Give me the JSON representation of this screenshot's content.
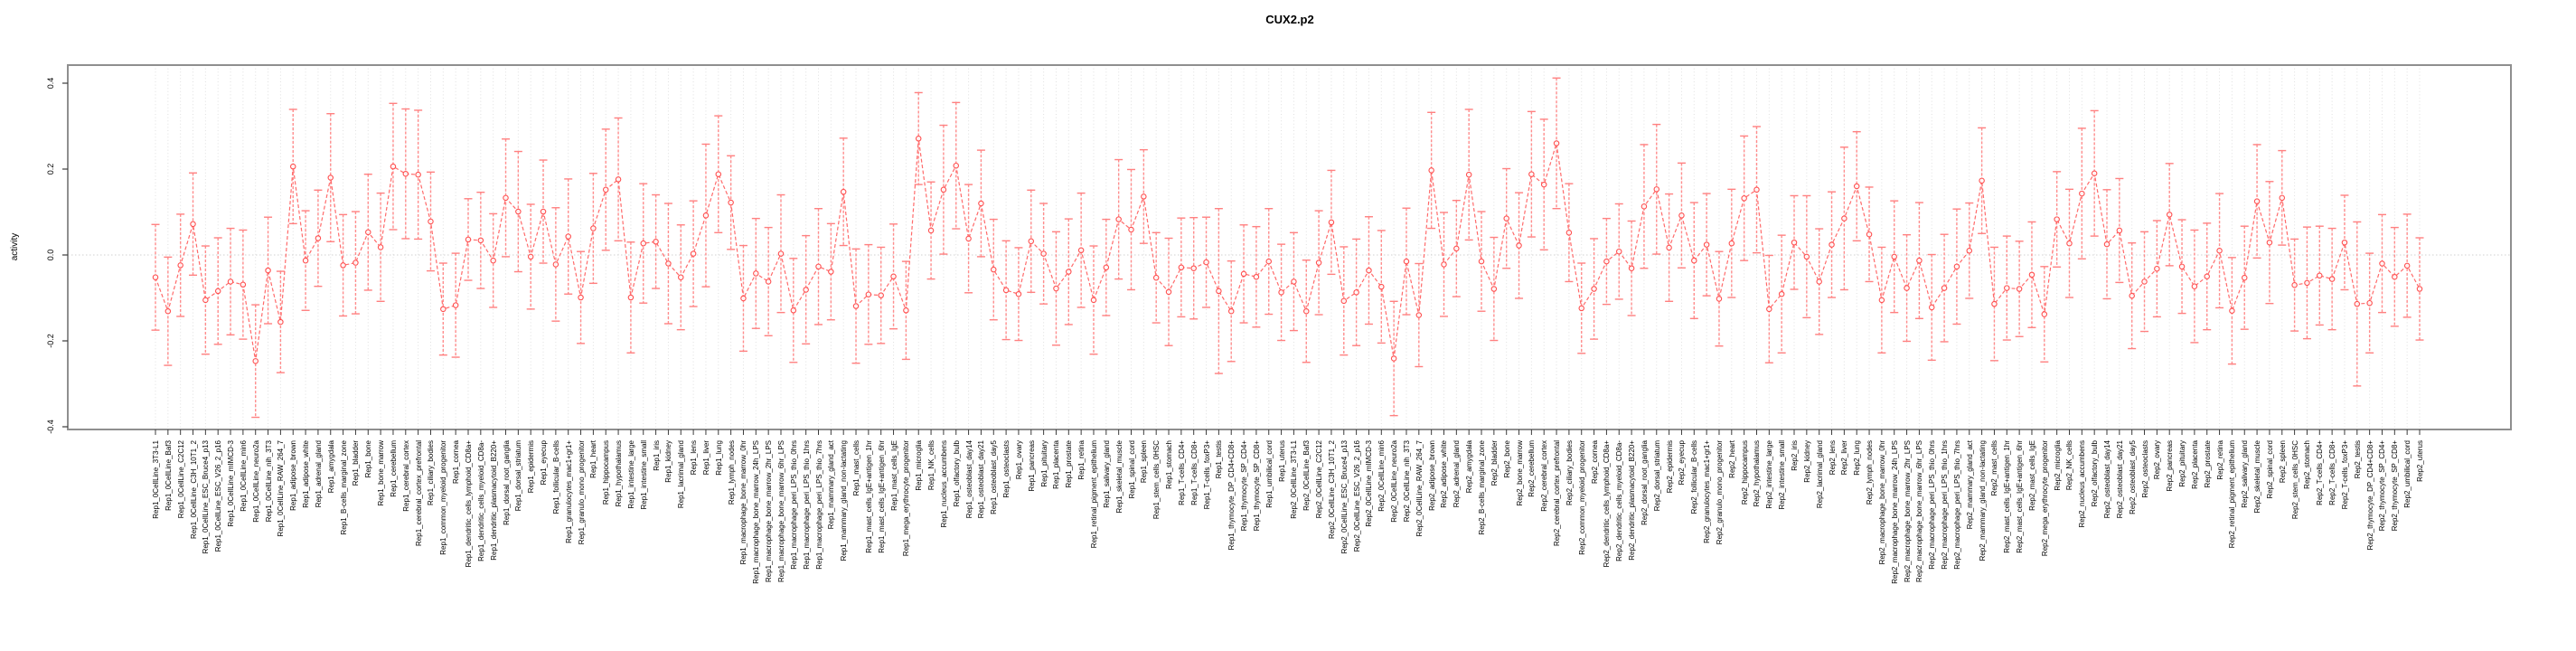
{
  "title": "CUX2.p2",
  "chart_data": {
    "type": "line",
    "title": "CUX2.p2",
    "xlabel": "",
    "ylabel": "activity",
    "ylim": [
      -0.406,
      0.442
    ],
    "yticks": [
      -0.4,
      -0.2,
      0.0,
      0.2,
      0.4
    ],
    "grid": "vertical dotted line at every category; dotted horizontal line at y=0",
    "legend_position": "none",
    "marker": "open-circle",
    "line_style": "dashed",
    "error_bars": true,
    "colors": {
      "series_line": "#ff6b6b",
      "error_bar": "#ff8d8d",
      "error_cap": "#ff8080",
      "marker_stroke": "#ff5050",
      "marker_fill": "#ffffff",
      "gridline": "#e0e0e0",
      "zero_line": "#d0d0d0",
      "frame": "#8f8f8f",
      "tick": "#3c3c3c",
      "text": "#000000"
    },
    "categories": [
      "Rep1_0CellLine_3T3-L1",
      "Rep1_0CellLine_Baf3",
      "Rep1_0CellLine_C2C12",
      "Rep1_0CellLine_C3H_10T1_2",
      "Rep1_0CellLine_ESC_Bruce4_p13",
      "Rep1_0CellLine_ESC_V26_2_p16",
      "Rep1_0CellLine_mIMCD-3",
      "Rep1_0CellLine_min6",
      "Rep1_0CellLine_neuro2a",
      "Rep1_0CellLine_nih_3T3",
      "Rep1_0CellLine_RAW_264_7",
      "Rep1_adipose_brown",
      "Rep1_adipose_white",
      "Rep1_adrenal_gland",
      "Rep1_amygdala",
      "Rep1_B-cells_marginal_zone",
      "Rep1_bladder",
      "Rep1_bone",
      "Rep1_bone_marrow",
      "Rep1_cerebellum",
      "Rep1_cerebral_cortex",
      "Rep1_cerebral_cortex_prefrontal",
      "Rep1_ciliary_bodies",
      "Rep1_common_myeloid_progenitor",
      "Rep1_cornea",
      "Rep1_dendritic_cells_lymphoid_CD8a+",
      "Rep1_dendritic_cells_myeloid_CD8a-",
      "Rep1_dendritic_plasmacytoid_B220+",
      "Rep1_dorsal_root_ganglia",
      "Rep1_dorsal_striatum",
      "Rep1_epidermis",
      "Rep1_eyecup",
      "Rep1_follicular_B-cells",
      "Rep1_granulocytes_mac1+gr1+",
      "Rep1_granulo_mono_progenitor",
      "Rep1_heart",
      "Rep1_hippocampus",
      "Rep1_hypothalamus",
      "Rep1_intestine_large",
      "Rep1_intestine_small",
      "Rep1_iris",
      "Rep1_kidney",
      "Rep1_lacrimal_gland",
      "Rep1_lens",
      "Rep1_liver",
      "Rep1_lung",
      "Rep1_lymph_nodes",
      "Rep1_macrophage_bone_marrow_0hr",
      "Rep1_macrophage_bone_marrow_24h_LPS",
      "Rep1_macrophage_bone_marrow_2hr_LPS",
      "Rep1_macrophage_bone_marrow_6hr_LPS",
      "Rep1_macrophage_peri_LPS_thio_0hrs",
      "Rep1_macrophage_peri_LPS_thio_1hrs",
      "Rep1_macrophage_peri_LPS_thio_7hrs",
      "Rep1_mammary_gland_act",
      "Rep1_mammary_gland_non-lactating",
      "Rep1_mast_cells",
      "Rep1_mast_cells_IgE+antigen_1hr",
      "Rep1_mast_cells_IgE+antigen_6hr",
      "Rep1_mast_cells_IgE",
      "Rep1_mega_erythrocyte_progenitor",
      "Rep1_microglia",
      "Rep1_NK_cells",
      "Rep1_nucleus_accumbens",
      "Rep1_olfactory_bulb",
      "Rep1_osteoblast_day14",
      "Rep1_osteoblast_day21",
      "Rep1_osteoblast_day5",
      "Rep1_osteoclasts",
      "Rep1_ovary",
      "Rep1_pancreas",
      "Rep1_pituitary",
      "Rep1_placenta",
      "Rep1_prostate",
      "Rep1_retina",
      "Rep1_retinal_pigment_epithelium",
      "Rep1_salivary_gland",
      "Rep1_skeletal_muscle",
      "Rep1_spinal_cord",
      "Rep1_spleen",
      "Rep1_stem_cells_0HSC",
      "Rep1_stomach",
      "Rep1_T-cells_CD4+",
      "Rep1_T-cells_CD8+",
      "Rep1_T-cells_foxP3+",
      "Rep1_testis",
      "Rep1_thymocyte_DP_CD4+CD8+",
      "Rep1_thymocyte_SP_CD4+",
      "Rep1_thymocyte_SP_CD8+",
      "Rep1_umbilical_cord",
      "Rep1_uterus",
      "Rep2_0CellLine_3T3-L1",
      "Rep2_0CellLine_Baf3",
      "Rep2_0CellLine_C2C12",
      "Rep2_0CellLine_C3H_10T1_2",
      "Rep2_0CellLine_ESC_Bruce4_p13",
      "Rep2_0CellLine_ESC_V26_2_p16",
      "Rep2_0CellLine_mIMCD-3",
      "Rep2_0CellLine_min6",
      "Rep2_0CellLine_neuro2a",
      "Rep2_0CellLine_nih_3T3",
      "Rep2_0CellLine_RAW_264_7",
      "Rep2_adipose_brown",
      "Rep2_adipose_white",
      "Rep2_adrenal_gland",
      "Rep2_amygdala",
      "Rep2_B-cells_marginal_zone",
      "Rep2_bladder",
      "Rep2_bone",
      "Rep2_bone_marrow",
      "Rep2_cerebellum",
      "Rep2_cerebral_cortex",
      "Rep2_cerebral_cortex_prefrontal",
      "Rep2_ciliary_bodies",
      "Rep2_common_myeloid_progenitor",
      "Rep2_cornea",
      "Rep2_dendritic_cells_lymphoid_CD8a+",
      "Rep2_dendritic_cells_myeloid_CD8a-",
      "Rep2_dendritic_plasmacytoid_B220+",
      "Rep2_dorsal_root_ganglia",
      "Rep2_dorsal_striatum",
      "Rep2_epidermis",
      "Rep2_eyecup",
      "Rep2_follicular_B-cells",
      "Rep2_granulocytes_mac1+gr1+",
      "Rep2_granulo_mono_progenitor",
      "Rep2_heart",
      "Rep2_hippocampus",
      "Rep2_hypothalamus",
      "Rep2_intestine_large",
      "Rep2_intestine_small",
      "Rep2_iris",
      "Rep2_kidney",
      "Rep2_lacrimal_gland",
      "Rep2_lens",
      "Rep2_liver",
      "Rep2_lung",
      "Rep2_lymph_nodes",
      "Rep2_macrophage_bone_marrow_0hr",
      "Rep2_macrophage_bone_marrow_24h_LPS",
      "Rep2_macrophage_bone_marrow_2hr_LPS",
      "Rep2_macrophage_bone_marrow_6hr_LPS",
      "Rep2_macrophage_peri_LPS_thio_0hrs",
      "Rep2_macrophage_peri_LPS_thio_1hrs",
      "Rep2_macrophage_peri_LPS_thio_7hrs",
      "Rep2_mammary_gland_act",
      "Rep2_mammary_gland_non-lactating",
      "Rep2_mast_cells",
      "Rep2_mast_cells_IgE+antigen_1hr",
      "Rep2_mast_cells_IgE+antigen_6hr",
      "Rep2_mast_cells_IgE",
      "Rep2_mega_erythrocyte_progenitor",
      "Rep2_microglia",
      "Rep2_NK_cells",
      "Rep2_nucleus_accumbens",
      "Rep2_olfactory_bulb",
      "Rep2_osteoblast_day14",
      "Rep2_osteoblast_day21",
      "Rep2_osteoblast_day5",
      "Rep2_osteoclasts",
      "Rep2_ovary",
      "Rep2_pancreas",
      "Rep2_pituitary",
      "Rep2_placenta",
      "Rep2_prostate",
      "Rep2_retina",
      "Rep2_retinal_pigment_epithelium",
      "Rep2_salivary_gland",
      "Rep2_skeletal_muscle",
      "Rep2_spinal_cord",
      "Rep2_spleen",
      "Rep2_stem_cells_0HSC",
      "Rep2_stomach",
      "Rep2_T-cells_CD4+",
      "Rep2_T-cells_CD8+",
      "Rep2_T-cells_foxP3+",
      "Rep2_testis",
      "Rep2_thymocyte_DP_CD4+CD8+",
      "Rep2_thymocyte_SP_CD4+",
      "Rep2_thymocyte_SP_CD8+",
      "Rep2_umbilical_cord",
      "Rep2_uterus"
    ],
    "values": [
      -0.052,
      -0.131,
      -0.024,
      0.072,
      -0.105,
      -0.084,
      -0.062,
      -0.069,
      -0.247,
      -0.036,
      -0.156,
      0.206,
      -0.013,
      0.039,
      0.18,
      -0.024,
      -0.018,
      0.053,
      0.018,
      0.206,
      0.189,
      0.187,
      0.078,
      -0.126,
      -0.117,
      0.036,
      0.034,
      -0.013,
      0.133,
      0.101,
      -0.004,
      0.101,
      -0.022,
      0.043,
      -0.099,
      0.062,
      0.152,
      0.176,
      -0.099,
      0.027,
      0.031,
      -0.02,
      -0.052,
      0.003,
      0.092,
      0.188,
      0.122,
      -0.101,
      -0.043,
      -0.062,
      0.003,
      -0.129,
      -0.081,
      -0.027,
      -0.039,
      0.147,
      -0.119,
      -0.092,
      -0.094,
      -0.05,
      -0.129,
      0.271,
      0.057,
      0.152,
      0.208,
      0.038,
      0.12,
      -0.034,
      -0.082,
      -0.091,
      0.032,
      0.003,
      -0.078,
      -0.039,
      0.011,
      -0.105,
      -0.029,
      0.083,
      0.059,
      0.136,
      -0.053,
      -0.086,
      -0.029,
      -0.031,
      -0.017,
      -0.084,
      -0.131,
      -0.044,
      -0.051,
      -0.015,
      -0.087,
      -0.062,
      -0.131,
      -0.018,
      0.076,
      -0.107,
      -0.087,
      -0.036,
      -0.074,
      -0.241,
      -0.015,
      -0.14,
      0.197,
      -0.022,
      0.015,
      0.187,
      -0.015,
      -0.079,
      0.085,
      0.022,
      0.188,
      0.164,
      0.26,
      0.052,
      -0.124,
      -0.079,
      -0.015,
      0.008,
      -0.031,
      0.113,
      0.153,
      0.017,
      0.092,
      -0.013,
      0.024,
      -0.102,
      0.027,
      0.132,
      0.152,
      -0.126,
      -0.091,
      0.029,
      -0.004,
      -0.062,
      0.024,
      0.085,
      0.16,
      0.048,
      -0.105,
      -0.004,
      -0.077,
      -0.013,
      -0.122,
      -0.077,
      -0.027,
      0.01,
      0.173,
      -0.114,
      -0.077,
      -0.079,
      -0.046,
      -0.138,
      0.083,
      0.027,
      0.143,
      0.19,
      0.025,
      0.057,
      -0.095,
      -0.062,
      -0.032,
      0.094,
      -0.027,
      -0.073,
      -0.05,
      0.01,
      -0.13,
      -0.053,
      0.125,
      0.029,
      0.133,
      -0.07,
      -0.065,
      -0.048,
      -0.056,
      0.029,
      -0.114,
      -0.112,
      -0.02,
      -0.051,
      -0.025,
      -0.079
    ],
    "errors": [
      0.123,
      0.126,
      0.119,
      0.119,
      0.126,
      0.124,
      0.124,
      0.127,
      0.131,
      0.124,
      0.118,
      0.133,
      0.116,
      0.112,
      0.149,
      0.118,
      0.119,
      0.135,
      0.126,
      0.147,
      0.151,
      0.15,
      0.115,
      0.107,
      0.121,
      0.095,
      0.112,
      0.109,
      0.137,
      0.14,
      0.122,
      0.12,
      0.132,
      0.134,
      0.107,
      0.128,
      0.141,
      0.143,
      0.129,
      0.139,
      0.109,
      0.14,
      0.122,
      0.123,
      0.166,
      0.136,
      0.109,
      0.123,
      0.128,
      0.126,
      0.137,
      0.121,
      0.126,
      0.135,
      0.112,
      0.125,
      0.133,
      0.116,
      0.112,
      0.122,
      0.114,
      0.107,
      0.113,
      0.15,
      0.147,
      0.126,
      0.124,
      0.117,
      0.115,
      0.108,
      0.119,
      0.117,
      0.132,
      0.123,
      0.133,
      0.126,
      0.112,
      0.139,
      0.14,
      0.109,
      0.105,
      0.125,
      0.115,
      0.118,
      0.105,
      0.192,
      0.117,
      0.114,
      0.117,
      0.123,
      0.112,
      0.114,
      0.119,
      0.121,
      0.121,
      0.126,
      0.124,
      0.125,
      0.131,
      0.133,
      0.124,
      0.12,
      0.135,
      0.121,
      0.112,
      0.152,
      0.116,
      0.12,
      0.116,
      0.123,
      0.146,
      0.152,
      0.152,
      0.114,
      0.105,
      0.117,
      0.1,
      0.111,
      0.11,
      0.144,
      0.151,
      0.125,
      0.122,
      0.135,
      0.119,
      0.11,
      0.126,
      0.145,
      0.147,
      0.125,
      0.137,
      0.109,
      0.142,
      0.123,
      0.123,
      0.166,
      0.127,
      0.11,
      0.123,
      0.13,
      0.124,
      0.135,
      0.123,
      0.125,
      0.134,
      0.111,
      0.123,
      0.132,
      0.121,
      0.111,
      0.123,
      0.111,
      0.111,
      0.126,
      0.152,
      0.146,
      0.127,
      0.121,
      0.123,
      0.116,
      0.112,
      0.119,
      0.109,
      0.131,
      0.124,
      0.133,
      0.124,
      0.12,
      0.132,
      0.142,
      0.11,
      0.107,
      0.13,
      0.115,
      0.118,
      0.11,
      0.191,
      0.116,
      0.114,
      0.115,
      0.12,
      0.119
    ]
  }
}
